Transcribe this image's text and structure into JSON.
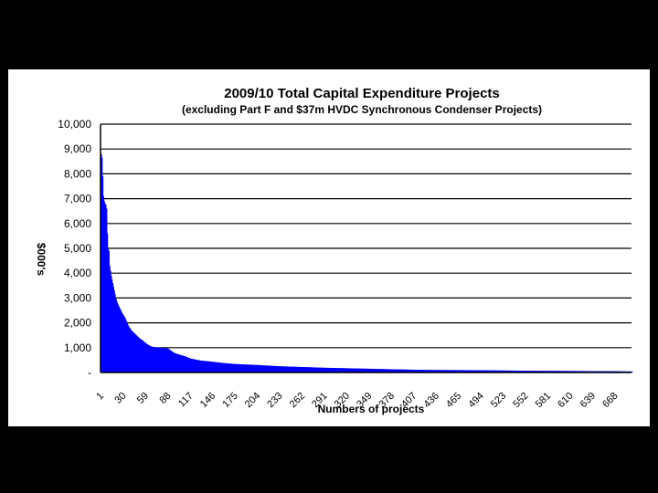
{
  "colors": {
    "background": "#000000",
    "panel": "#ffffff",
    "bars": "#0000ff",
    "grid": "#000000"
  },
  "chart_data": {
    "type": "bar",
    "title": "2009/10 Total Capital Expenditure Projects",
    "subtitle": "(excluding Part F and $37m HVDC Synchronous Condenser Projects)",
    "xlabel": "Numbers of projects",
    "ylabel": "$000's",
    "ylim": [
      0,
      10000
    ],
    "grid": true,
    "y_ticks": [
      "-",
      "1,000",
      "2,000",
      "3,000",
      "4,000",
      "5,000",
      "6,000",
      "7,000",
      "8,000",
      "9,000",
      "10,000"
    ],
    "x_ticks": [
      "1",
      "30",
      "59",
      "88",
      "117",
      "146",
      "175",
      "204",
      "233",
      "262",
      "291",
      "320",
      "349",
      "378",
      "407",
      "436",
      "465",
      "494",
      "523",
      "552",
      "581",
      "610",
      "639",
      "668"
    ],
    "x_range": [
      1,
      690
    ],
    "profile_points": [
      [
        1,
        8800
      ],
      [
        2,
        8650
      ],
      [
        3,
        7900
      ],
      [
        4,
        7100
      ],
      [
        5,
        6900
      ],
      [
        6,
        6800
      ],
      [
        7,
        6750
      ],
      [
        8,
        6600
      ],
      [
        9,
        5600
      ],
      [
        10,
        5000
      ],
      [
        11,
        4900
      ],
      [
        12,
        4300
      ],
      [
        13,
        4100
      ],
      [
        14,
        3900
      ],
      [
        16,
        3600
      ],
      [
        18,
        3300
      ],
      [
        20,
        3000
      ],
      [
        22,
        2800
      ],
      [
        25,
        2600
      ],
      [
        28,
        2400
      ],
      [
        32,
        2200
      ],
      [
        36,
        1900
      ],
      [
        40,
        1700
      ],
      [
        45,
        1550
      ],
      [
        50,
        1400
      ],
      [
        55,
        1280
      ],
      [
        60,
        1150
      ],
      [
        65,
        1060
      ],
      [
        70,
        1020
      ],
      [
        80,
        1000
      ],
      [
        88,
        960
      ],
      [
        95,
        800
      ],
      [
        100,
        740
      ],
      [
        110,
        650
      ],
      [
        117,
        560
      ],
      [
        130,
        480
      ],
      [
        146,
        430
      ],
      [
        160,
        380
      ],
      [
        175,
        340
      ],
      [
        204,
        300
      ],
      [
        233,
        250
      ],
      [
        262,
        220
      ],
      [
        291,
        190
      ],
      [
        320,
        170
      ],
      [
        349,
        150
      ],
      [
        378,
        130
      ],
      [
        407,
        110
      ],
      [
        436,
        100
      ],
      [
        465,
        95
      ],
      [
        494,
        90
      ],
      [
        523,
        80
      ],
      [
        552,
        70
      ],
      [
        581,
        65
      ],
      [
        610,
        60
      ],
      [
        639,
        55
      ],
      [
        668,
        50
      ],
      [
        690,
        40
      ]
    ]
  }
}
